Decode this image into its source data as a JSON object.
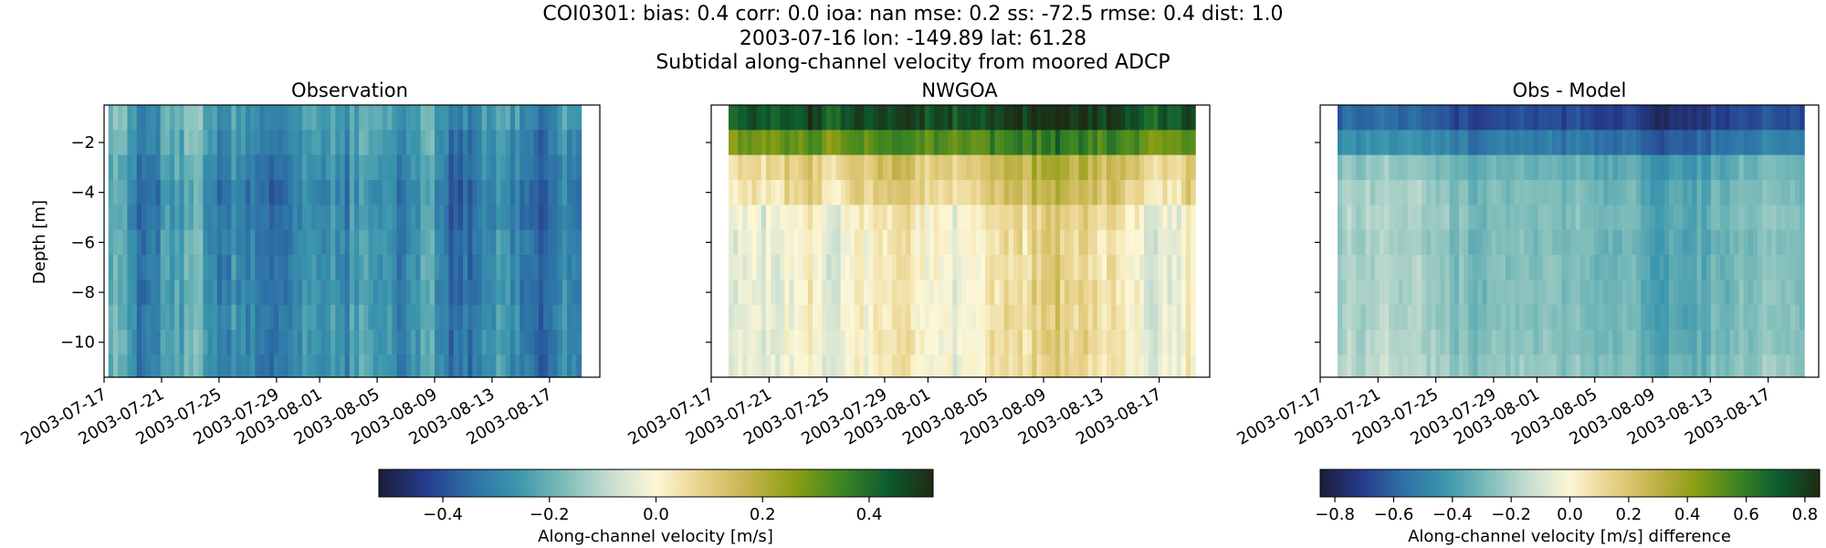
{
  "chart_data": {
    "type": "heatmap",
    "title_lines": [
      "COI0301: bias: 0.4  corr: 0.0  ioa: nan  mse: 0.2  ss: -72.5  rmse: 0.4  dist: 1.0",
      "2003-07-16 lon: -149.89 lat: 61.28",
      "Subtidal along-channel velocity from moored ADCP"
    ],
    "ylabel": "Depth [m]",
    "y_ticks": [
      -2,
      -4,
      -6,
      -8,
      -10
    ],
    "y_tick_labels": [
      "−2",
      "−4",
      "−6",
      "−8",
      "−10"
    ],
    "ylim": [
      -11.4,
      -0.5
    ],
    "depth_levels": [
      -1,
      -2,
      -3,
      -4,
      -5,
      -6,
      -7,
      -8,
      -9,
      -10,
      -11
    ],
    "x_tick_labels": [
      "2003-07-17",
      "2003-07-21",
      "2003-07-25",
      "2003-07-29",
      "2003-08-01",
      "2003-08-05",
      "2003-08-09",
      "2003-08-13",
      "2003-08-17"
    ],
    "x_ticks_day": [
      0,
      4,
      8,
      12,
      15,
      19,
      23,
      27,
      31
    ],
    "xlim_day": [
      0,
      34.5
    ],
    "panels": [
      {
        "title": "Observation",
        "data_day_range": [
          0.3,
          33.2
        ],
        "colorscale": "velocity",
        "vmin": -0.52,
        "vmax": 0.52,
        "mean_profile": [
          -0.23,
          -0.25,
          -0.27,
          -0.29,
          -0.28,
          -0.27,
          -0.27,
          -0.27,
          -0.26,
          -0.26,
          -0.26
        ],
        "profile": [
          -0.2,
          -0.24,
          -0.31,
          -0.31,
          -0.26,
          -0.22,
          -0.17,
          -0.29,
          -0.33,
          -0.28,
          -0.32,
          -0.36,
          -0.3,
          -0.27,
          -0.24,
          -0.25,
          -0.3,
          -0.25,
          -0.23,
          -0.28,
          -0.3,
          -0.26,
          -0.24,
          -0.3,
          -0.34,
          -0.33,
          -0.28,
          -0.26,
          -0.29,
          -0.31,
          -0.36,
          -0.33,
          -0.29,
          -0.28
        ]
      },
      {
        "title": "NWGOA",
        "data_day_range": [
          1.2,
          33.5
        ],
        "colorscale": "velocity",
        "vmin": -0.52,
        "vmax": 0.52,
        "mean_profile": [
          0.5,
          0.36,
          0.18,
          0.15,
          0.08,
          0.07,
          0.07,
          0.07,
          0.07,
          0.07,
          0.07
        ],
        "profile": [
          0.08,
          0.06,
          0.04,
          0.02,
          0.06,
          0.08,
          0.1,
          0.07,
          0.05,
          0.06,
          0.08,
          0.1,
          0.12,
          0.11,
          0.09,
          0.07,
          0.06,
          0.08,
          0.1,
          0.12,
          0.14,
          0.13,
          0.17,
          0.2,
          0.18,
          0.16,
          0.15,
          0.12,
          0.1,
          0.07,
          0.04,
          0.02,
          0.06,
          0.12
        ]
      },
      {
        "title": "Obs - Model",
        "data_day_range": [
          1.2,
          33.5
        ],
        "colorscale": "difference",
        "vmin": -0.85,
        "vmax": 0.85,
        "mean_profile": [
          -0.72,
          -0.58,
          -0.38,
          -0.34,
          -0.33,
          -0.34,
          -0.33,
          -0.33,
          -0.33,
          -0.32,
          -0.3
        ],
        "profile": [
          -0.3,
          -0.28,
          -0.26,
          -0.24,
          -0.22,
          -0.25,
          -0.24,
          -0.27,
          -0.3,
          -0.33,
          -0.35,
          -0.35,
          -0.33,
          -0.34,
          -0.36,
          -0.33,
          -0.34,
          -0.35,
          -0.36,
          -0.38,
          -0.4,
          -0.38,
          -0.41,
          -0.44,
          -0.42,
          -0.41,
          -0.4,
          -0.38,
          -0.36,
          -0.33,
          -0.31,
          -0.3,
          -0.33,
          -0.36
        ]
      }
    ],
    "colorbars": [
      {
        "label": "Along-channel velocity [m/s]",
        "colorscale": "velocity",
        "range": [
          -0.52,
          0.52
        ],
        "ticks": [
          -0.4,
          -0.2,
          0.0,
          0.2,
          0.4
        ],
        "tick_labels": [
          "−0.4",
          "−0.2",
          "0.0",
          "0.2",
          "0.4"
        ]
      },
      {
        "label": "Along-channel velocity [m/s] difference",
        "colorscale": "difference",
        "range": [
          -0.85,
          0.85
        ],
        "ticks": [
          -0.8,
          -0.6,
          -0.4,
          -0.2,
          0.0,
          0.2,
          0.4,
          0.6,
          0.8
        ],
        "tick_labels": [
          "−0.8",
          "−0.6",
          "−0.4",
          "−0.2",
          "0.0",
          "0.2",
          "0.4",
          "0.6",
          "0.8"
        ]
      }
    ],
    "colormap_stops": [
      "#1b1d3a",
      "#263b8c",
      "#2d70a6",
      "#3b96ad",
      "#7cbcb9",
      "#c7ddd0",
      "#fdf7d6",
      "#e8d189",
      "#c4b44c",
      "#8c9e14",
      "#3f8622",
      "#0d5c30",
      "#1f2a14"
    ]
  }
}
